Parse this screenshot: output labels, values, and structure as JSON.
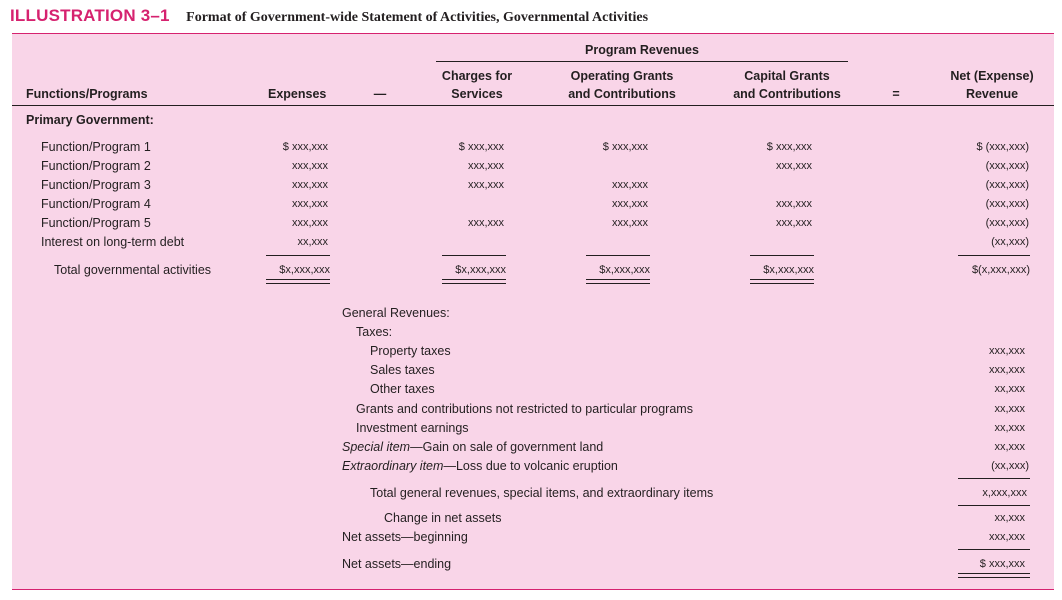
{
  "header": {
    "number": "ILLUSTRATION 3–1",
    "title": "Format of Government-wide Statement of Activities, Governmental Activities"
  },
  "columns": {
    "program_revenues": "Program Revenues",
    "functions": "Functions/Programs",
    "expenses": "Expenses",
    "minus": "—",
    "charges_1": "Charges for",
    "charges_2": "Services",
    "operating_1": "Operating Grants",
    "operating_2": "and Contributions",
    "capital_1": "Capital Grants",
    "capital_2": "and Contributions",
    "equals": "=",
    "net_1": "Net (Expense)",
    "net_2": "Revenue"
  },
  "primary_government": "Primary Government:",
  "rows": [
    {
      "label": "Function/Program 1",
      "expenses": "$  xxx,xxx",
      "charges": "$  xxx,xxx",
      "operating": "$  xxx,xxx",
      "capital": "$  xxx,xxx",
      "net": "$  (xxx,xxx)"
    },
    {
      "label": "Function/Program 2",
      "expenses": "xxx,xxx",
      "charges": "xxx,xxx",
      "operating": "",
      "capital": "xxx,xxx",
      "net": "(xxx,xxx)"
    },
    {
      "label": "Function/Program 3",
      "expenses": "xxx,xxx",
      "charges": "xxx,xxx",
      "operating": "xxx,xxx",
      "capital": "",
      "net": "(xxx,xxx)"
    },
    {
      "label": "Function/Program 4",
      "expenses": "xxx,xxx",
      "charges": "",
      "operating": "xxx,xxx",
      "capital": "xxx,xxx",
      "net": "(xxx,xxx)"
    },
    {
      "label": "Function/Program 5",
      "expenses": "xxx,xxx",
      "charges": "xxx,xxx",
      "operating": "xxx,xxx",
      "capital": "xxx,xxx",
      "net": "(xxx,xxx)"
    },
    {
      "label": "Interest on long-term debt",
      "expenses": "xx,xxx",
      "charges": "",
      "operating": "",
      "capital": "",
      "net": "(xx,xxx)"
    }
  ],
  "total": {
    "label": "Total governmental activities",
    "expenses": "$x,xxx,xxx",
    "charges": "$x,xxx,xxx",
    "operating": "$x,xxx,xxx",
    "capital": "$x,xxx,xxx",
    "net": "$(x,xxx,xxx)"
  },
  "general": {
    "heading": "General Revenues:",
    "taxes": "Taxes:",
    "property": {
      "label": "Property taxes",
      "value": "xxx,xxx"
    },
    "sales": {
      "label": "Sales taxes",
      "value": "xxx,xxx"
    },
    "other": {
      "label": "Other taxes",
      "value": "xx,xxx"
    },
    "grants": {
      "label": "Grants and contributions not restricted to particular programs",
      "value": "xx,xxx"
    },
    "investment": {
      "label": "Investment earnings",
      "value": "xx,xxx"
    },
    "special": {
      "label_italic": "Special item",
      "label_rest": "—Gain on sale of government land",
      "value": "xx,xxx"
    },
    "extraordinary": {
      "label_italic": "Extraordinary item",
      "label_rest": "—Loss due to volcanic eruption",
      "value": "(xx,xxx)"
    },
    "total": {
      "label": "Total general revenues, special items, and extraordinary items",
      "value": "x,xxx,xxx"
    },
    "change": {
      "label": "Change in net assets",
      "value": "xx,xxx"
    },
    "beginning": {
      "label": "Net assets—beginning",
      "value": "xxx,xxx"
    },
    "ending": {
      "label": "Net assets—ending",
      "value": "$  xxx,xxx"
    }
  }
}
